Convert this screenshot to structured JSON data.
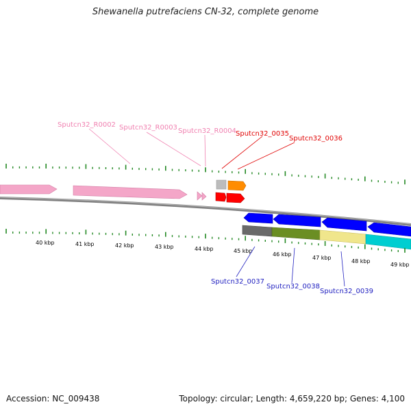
{
  "title": "Shewanella putrefaciens CN-32, complete genome",
  "footer": {
    "accession": "Accession: NC_009438",
    "summary": "Topology: circular; Length: 4,659,220 bp; Genes: 4,100"
  },
  "colors": {
    "rna_label": "#f080b0",
    "forward_label": "#e00000",
    "reverse_label": "#2020c0",
    "tick": "#228822",
    "backbone": "#808080"
  },
  "scale": {
    "ticks": [
      "40 kbp",
      "41 kbp",
      "42 kbp",
      "43 kbp",
      "44 kbp",
      "45 kbp",
      "46 kbp",
      "47 kbp",
      "48 kbp",
      "49 kbp"
    ]
  },
  "feature_labels": {
    "top": [
      {
        "text": "Sputcn32_R0002",
        "kind": "rna"
      },
      {
        "text": "Sputcn32_R0003",
        "kind": "rna"
      },
      {
        "text": "Sputcn32_R0004",
        "kind": "rna"
      },
      {
        "text": "Sputcn32_0035",
        "kind": "forward"
      },
      {
        "text": "Sputcn32_0036",
        "kind": "forward"
      }
    ],
    "bottom": [
      {
        "text": "Sputcn32_0037",
        "kind": "reverse"
      },
      {
        "text": "Sputcn32_0038",
        "kind": "reverse"
      },
      {
        "text": "Sputcn32_0039",
        "kind": "reverse"
      }
    ]
  }
}
